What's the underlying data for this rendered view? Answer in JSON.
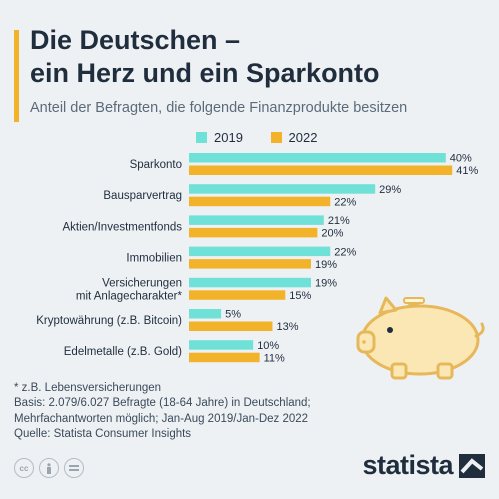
{
  "header": {
    "title_line1": "Die Deutschen –",
    "title_line2": "ein Herz und ein Sparkonto",
    "subtitle": "Anteil der Befragten, die folgende Finanzprodukte besitzen"
  },
  "colors": {
    "accent": "#f2b32a",
    "series_2019": "#6fe1d6",
    "series_2022": "#f2b32a"
  },
  "chart_data": {
    "type": "bar",
    "orientation": "horizontal",
    "categories": [
      [
        "Sparkonto"
      ],
      [
        "Bausparvertrag"
      ],
      [
        "Aktien/Investmentfonds"
      ],
      [
        "Immobilien"
      ],
      [
        "Versicherungen",
        "mit Anlagecharakter*"
      ],
      [
        "Kryptowährung (z.B. Bitcoin)"
      ],
      [
        "Edelmetalle (z.B. Gold)"
      ]
    ],
    "series": [
      {
        "name": "2019",
        "color": "#6fe1d6",
        "values": [
          40,
          29,
          21,
          22,
          19,
          5,
          10
        ]
      },
      {
        "name": "2022",
        "color": "#f2b32a",
        "values": [
          41,
          22,
          20,
          19,
          15,
          13,
          11
        ]
      }
    ],
    "value_suffix": "%",
    "legend_position": "top",
    "grid": false
  },
  "notes": [
    "* z.B. Lebensversicherungen",
    "Basis: 2.079/6.027 Befragte (18-64 Jahre) in Deutschland;",
    "Mehrfachantworten möglich; Jan-Aug 2019/Jan-Dez 2022",
    "Quelle: Statista Consumer Insights"
  ],
  "license_icons": [
    "cc-icon",
    "attribution-icon",
    "no-derivatives-icon"
  ],
  "brand": {
    "name": "statista"
  }
}
